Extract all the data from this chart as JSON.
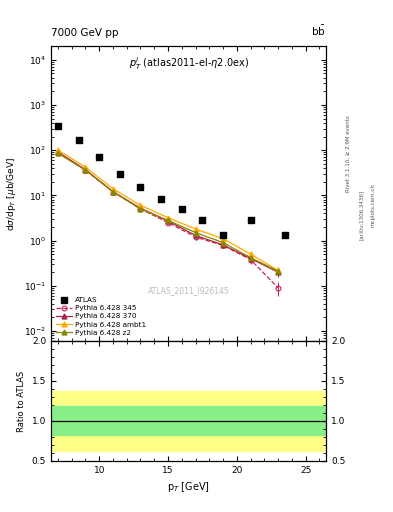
{
  "title_top": "7000 GeV pp",
  "title_right": "b$\\bar{\\rm b}$",
  "watermark": "ATLAS_2011_I926145",
  "ylabel_main": "dσ/dp$_T$ [μb/GeV]",
  "ylabel_ratio": "Ratio to ATLAS",
  "xlabel": "p$_T$ [GeV]",
  "right_label1": "Rivet 3.1.10, ≥ 2.9M events",
  "right_label2": "[arXiv:1306.3436]",
  "right_label3": "mcplots.cern.ch",
  "atlas_x": [
    7.0,
    8.5,
    10.0,
    11.5,
    13.0,
    14.5,
    16.0,
    17.5,
    19.0,
    21.0,
    23.5
  ],
  "atlas_y": [
    350,
    165,
    72,
    30,
    15,
    8.5,
    5.0,
    2.8,
    1.3,
    2.8,
    1.3
  ],
  "p345_x": [
    7.0,
    9.0,
    11.0,
    13.0,
    15.0,
    17.0,
    19.0,
    21.0,
    23.0
  ],
  "p345_y": [
    88,
    36,
    12,
    5.0,
    2.5,
    1.2,
    0.78,
    0.38,
    0.09
  ],
  "p370_x": [
    7.0,
    9.0,
    11.0,
    13.0,
    15.0,
    17.0,
    19.0,
    21.0,
    23.0
  ],
  "p370_y": [
    90,
    37,
    12,
    5.2,
    2.7,
    1.3,
    0.8,
    0.4,
    0.2
  ],
  "pambt_x": [
    7.0,
    9.0,
    11.0,
    13.0,
    15.0,
    17.0,
    19.0,
    21.0,
    23.0
  ],
  "pambt_y": [
    100,
    42,
    14,
    6.0,
    3.2,
    1.8,
    1.1,
    0.5,
    0.22
  ],
  "pz2_x": [
    7.0,
    9.0,
    11.0,
    13.0,
    15.0,
    17.0,
    19.0,
    21.0,
    23.0
  ],
  "pz2_y": [
    85,
    36,
    12,
    5.0,
    2.8,
    1.5,
    0.9,
    0.42,
    0.21
  ],
  "p345_err_y": [
    3,
    2,
    0.8,
    0.4,
    0.2,
    0.15,
    0.1,
    0.08,
    0.03
  ],
  "p370_err_y": [
    3,
    2,
    0.8,
    0.4,
    0.2,
    0.15,
    0.1,
    0.08,
    0.04
  ],
  "pambt_err_y": [
    4,
    2.5,
    1.0,
    0.5,
    0.25,
    0.2,
    0.12,
    0.09,
    0.04
  ],
  "pz2_err_y": [
    3,
    2,
    0.8,
    0.4,
    0.22,
    0.15,
    0.1,
    0.08,
    0.04
  ],
  "band_yellow_lo": 0.62,
  "band_yellow_hi": 1.38,
  "band_green_lo": 0.82,
  "band_green_hi": 1.18,
  "color_345": "#cc2255",
  "color_370": "#aa2244",
  "color_ambt": "#ffaa00",
  "color_z2": "#888800",
  "main_ylim_lo": 0.006,
  "main_ylim_hi": 20000,
  "ratio_ylim_lo": 0.5,
  "ratio_ylim_hi": 2.0,
  "xlim_lo": 6.5,
  "xlim_hi": 26.5
}
